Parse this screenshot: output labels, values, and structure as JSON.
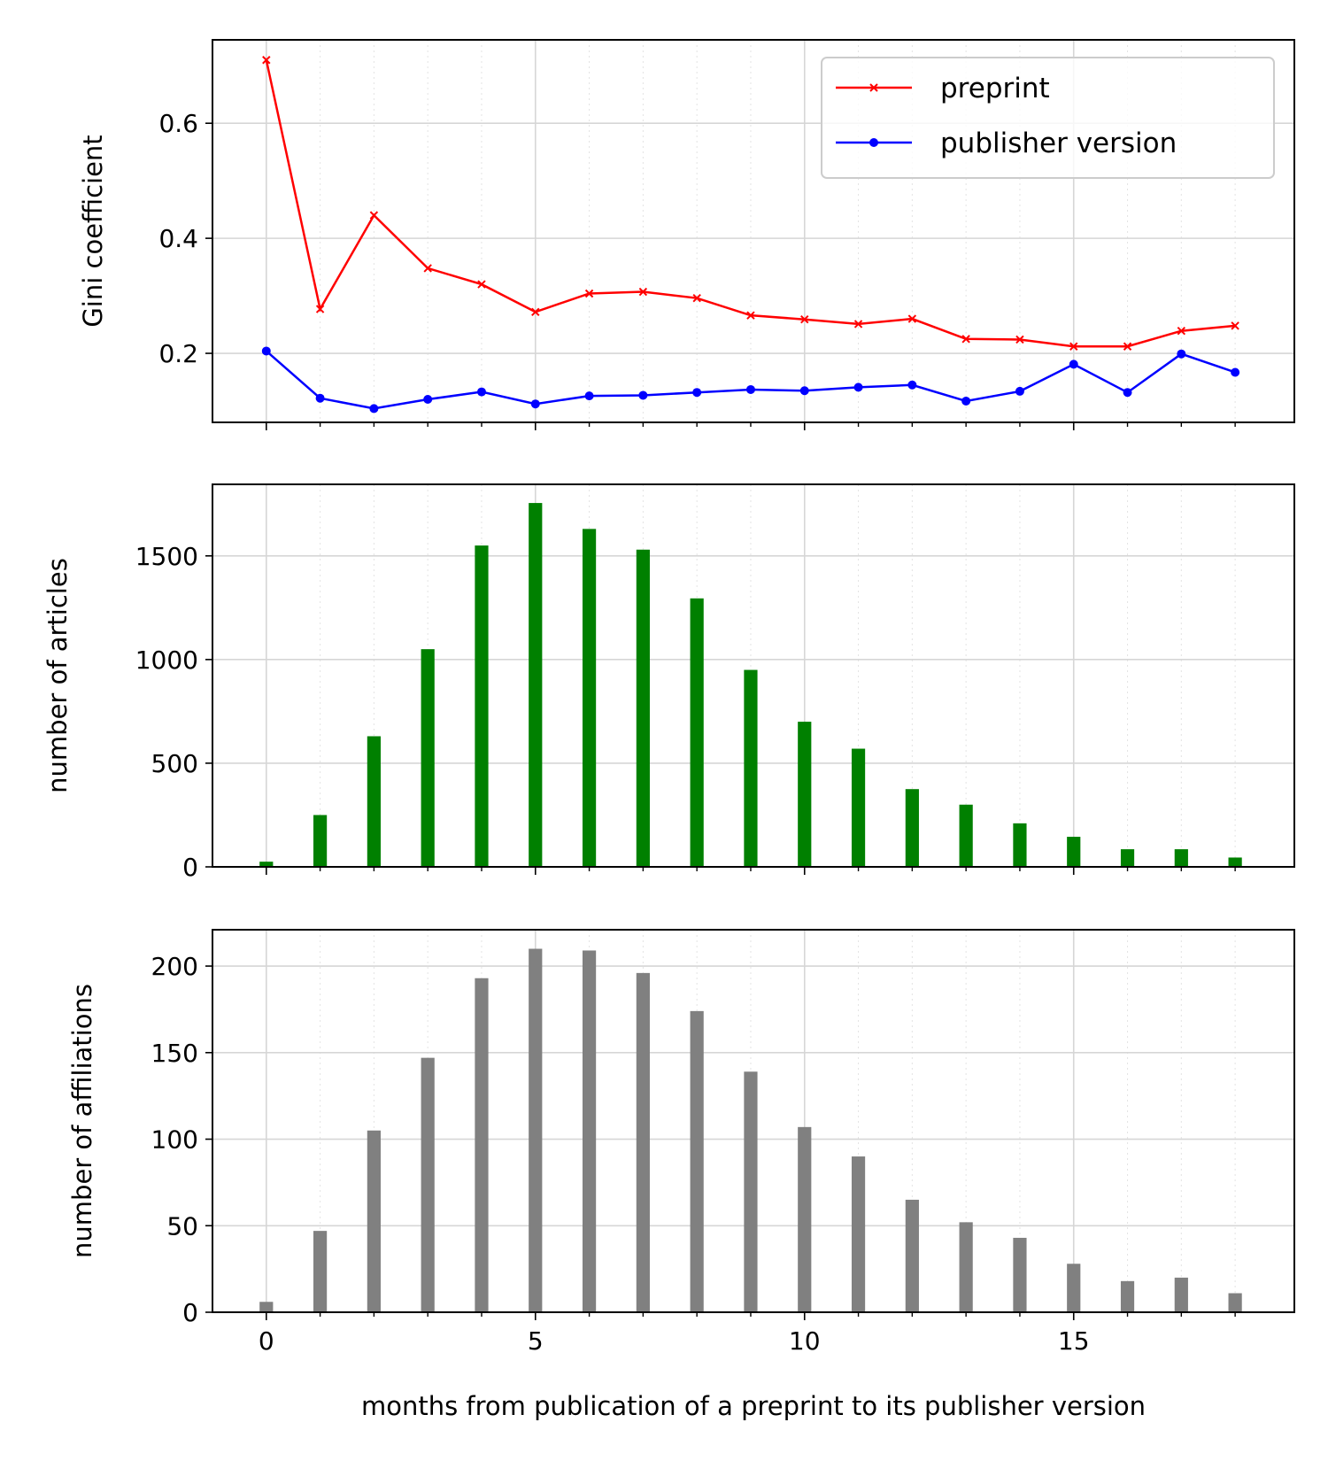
{
  "chart_data": [
    {
      "type": "line",
      "xlabel": "",
      "ylabel": "Gini coefficient",
      "x": [
        0,
        1,
        2,
        3,
        4,
        5,
        6,
        7,
        8,
        9,
        10,
        11,
        12,
        13,
        14,
        15,
        16,
        17,
        18
      ],
      "xlim": [
        -1,
        19.1
      ],
      "ylim": [
        0.08,
        0.745
      ],
      "yticks": [
        0.2,
        0.4,
        0.6
      ],
      "ytick_labels": [
        "0.2",
        "0.4",
        "0.6"
      ],
      "grid": true,
      "legend_position": "top-right",
      "series": [
        {
          "name": "preprint",
          "color": "#ff0000",
          "marker": "x",
          "values": [
            0.71,
            0.277,
            0.44,
            0.348,
            0.32,
            0.272,
            0.304,
            0.307,
            0.296,
            0.266,
            0.259,
            0.251,
            0.26,
            0.225,
            0.224,
            0.212,
            0.212,
            0.239,
            0.248
          ]
        },
        {
          "name": "publisher version",
          "color": "#0000ff",
          "marker": "dot",
          "values": [
            0.204,
            0.122,
            0.104,
            0.12,
            0.133,
            0.112,
            0.126,
            0.127,
            0.132,
            0.137,
            0.135,
            0.141,
            0.145,
            0.117,
            0.134,
            0.181,
            0.132,
            0.199,
            0.167
          ]
        }
      ]
    },
    {
      "type": "bar",
      "xlabel": "",
      "ylabel": "number of articles",
      "x": [
        0,
        1,
        2,
        3,
        4,
        5,
        6,
        7,
        8,
        9,
        10,
        11,
        12,
        13,
        14,
        15,
        16,
        17,
        18
      ],
      "xlim": [
        -1,
        19.1
      ],
      "ylim": [
        0,
        1845
      ],
      "yticks": [
        0,
        500,
        1000,
        1500
      ],
      "ytick_labels": [
        "0",
        "500",
        "1000",
        "1500"
      ],
      "grid": true,
      "color": "#008000",
      "values": [
        25,
        250,
        630,
        1050,
        1550,
        1755,
        1630,
        1530,
        1295,
        950,
        700,
        570,
        375,
        300,
        210,
        145,
        85,
        85,
        45
      ]
    },
    {
      "type": "bar",
      "xlabel": "months from publication of a preprint to its publisher version",
      "ylabel": "number of affiliations",
      "x": [
        0,
        1,
        2,
        3,
        4,
        5,
        6,
        7,
        8,
        9,
        10,
        11,
        12,
        13,
        14,
        15,
        16,
        17,
        18
      ],
      "xlim": [
        -1,
        19.1
      ],
      "ylim": [
        0,
        221
      ],
      "xticks": [
        0,
        5,
        10,
        15
      ],
      "xtick_labels": [
        "0",
        "5",
        "10",
        "15"
      ],
      "yticks": [
        0,
        50,
        100,
        150,
        200
      ],
      "ytick_labels": [
        "0",
        "50",
        "100",
        "150",
        "200"
      ],
      "grid": true,
      "color": "#808080",
      "values": [
        6,
        47,
        105,
        147,
        193,
        210,
        209,
        196,
        174,
        139,
        107,
        90,
        65,
        52,
        43,
        28,
        18,
        20,
        11
      ]
    }
  ]
}
